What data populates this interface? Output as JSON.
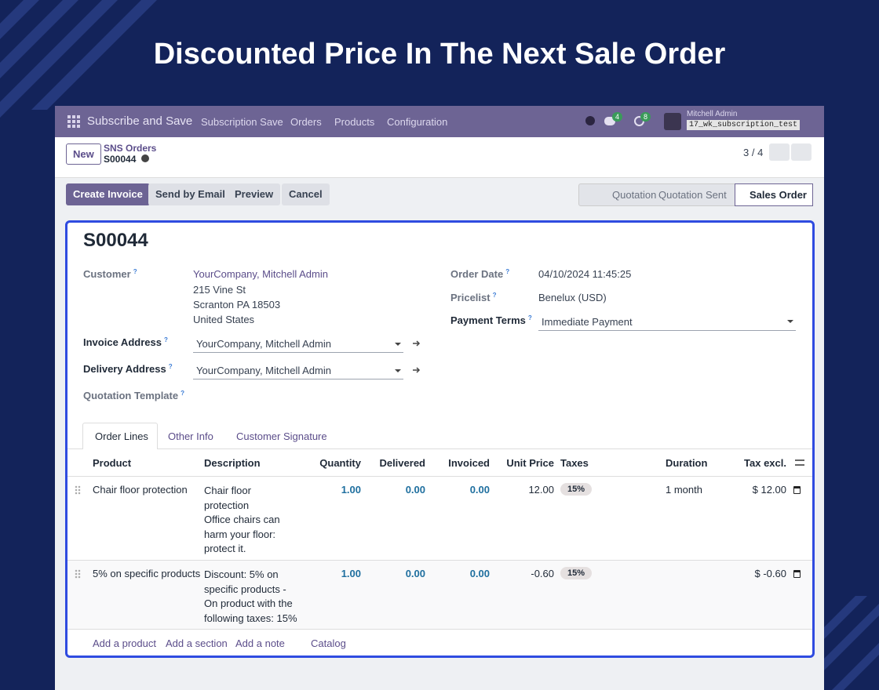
{
  "banner_title": "Discounted Price In The Next Sale Order",
  "navbar": {
    "app": "Subscribe and Save",
    "menus": [
      "Subscription Save",
      "Orders",
      "Products",
      "Configuration"
    ],
    "chat_count": 4,
    "activity_count": 8,
    "user": "Mitchell Admin",
    "database": "17_wk_subscription_test"
  },
  "breadcrumb": {
    "new_button": "New",
    "parent": "SNS Orders",
    "current": "S00044",
    "pager": "3 / 4"
  },
  "actions": [
    "Create Invoice",
    "Send by Email",
    "Preview",
    "Cancel"
  ],
  "statusbar": [
    "Quotation",
    "Quotation Sent",
    "Sales Order"
  ],
  "form": {
    "name": "S00044",
    "help_mark": "?",
    "customer": {
      "label": "Customer",
      "value": "YourCompany, Mitchell Admin",
      "address": [
        "215 Vine St",
        "Scranton PA 18503",
        "United States"
      ]
    },
    "invoice_address": {
      "label": "Invoice Address",
      "value": "YourCompany, Mitchell Admin"
    },
    "delivery_address": {
      "label": "Delivery Address",
      "value": "YourCompany, Mitchell Admin"
    },
    "quotation_template": {
      "label": "Quotation Template"
    },
    "order_date": {
      "label": "Order Date",
      "value": "04/10/2024 11:45:25"
    },
    "pricelist": {
      "label": "Pricelist",
      "value": "Benelux (USD)"
    },
    "payment_terms": {
      "label": "Payment Terms",
      "value": "Immediate Payment"
    }
  },
  "tabs": [
    "Order Lines",
    "Other Info",
    "Customer Signature"
  ],
  "table": {
    "headers": [
      "Product",
      "Description",
      "Quantity",
      "Delivered",
      "Invoiced",
      "Unit Price",
      "Taxes",
      "Duration",
      "Tax excl."
    ],
    "rows": [
      {
        "product": "Chair floor protection",
        "description": "Chair floor\nprotection\nOffice chairs can harm your floor: protect it.",
        "quantity": "1.00",
        "delivered": "0.00",
        "invoiced": "0.00",
        "unit_price": "12.00",
        "taxes": "15%",
        "duration": "1 month",
        "tax_excl": "$ 12.00"
      },
      {
        "product": "5% on specific products",
        "description": "Discount: 5% on specific products - On product with the following taxes: 15%",
        "quantity": "1.00",
        "delivered": "0.00",
        "invoiced": "0.00",
        "unit_price": "-0.60",
        "taxes": "15%",
        "tax_excl": "$ -0.60"
      }
    ]
  },
  "footer_links": [
    "Add a product",
    "Add a section",
    "Add a note",
    "Catalog"
  ]
}
